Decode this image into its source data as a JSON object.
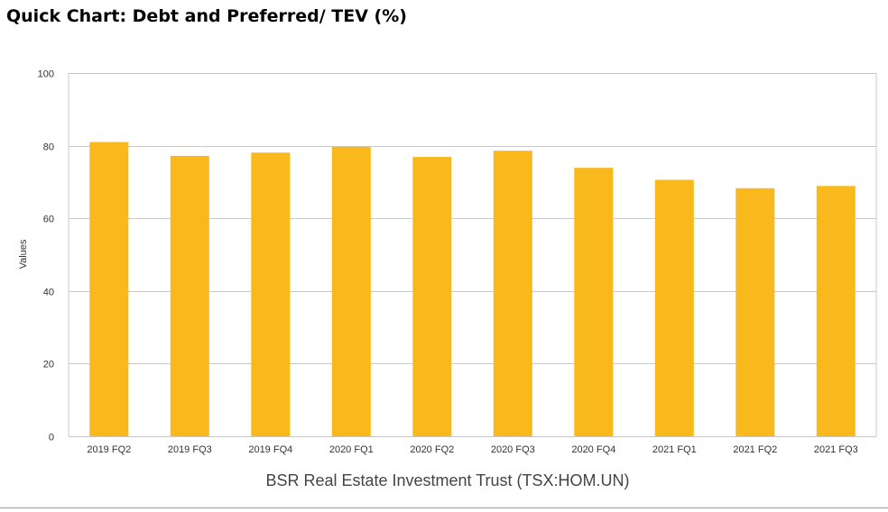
{
  "page": {
    "title": "Quick Chart: Debt and Preferred/ TEV (%)"
  },
  "chart_data": {
    "type": "bar",
    "title": "Quick Chart: Debt and Preferred/ TEV (%)",
    "xlabel": "BSR Real Estate Investment Trust (TSX:HOM.UN)",
    "ylabel": "Values",
    "categories": [
      "2019 FQ2",
      "2019 FQ3",
      "2019 FQ4",
      "2020 FQ1",
      "2020 FQ2",
      "2020 FQ3",
      "2020 FQ4",
      "2021 FQ1",
      "2021 FQ2",
      "2021 FQ3"
    ],
    "values": [
      81.0,
      77.2,
      78.1,
      79.7,
      76.9,
      78.6,
      73.9,
      70.6,
      68.3,
      68.9
    ],
    "ylim": [
      0,
      100
    ],
    "yticks": [
      0,
      20,
      40,
      60,
      80,
      100
    ],
    "grid": true,
    "legend": "none",
    "bar_color": "#f9b91c",
    "grid_color": "#c8c8c8"
  }
}
